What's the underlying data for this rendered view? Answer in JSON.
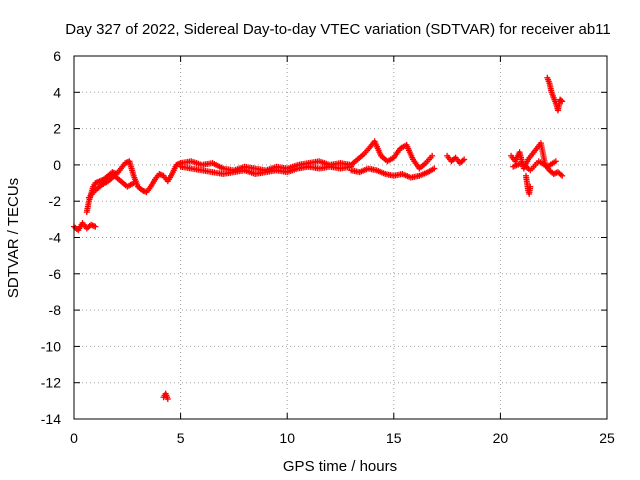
{
  "chart_data": {
    "type": "scatter",
    "title": "Day 327 of 2022, Sidereal Day-to-day VTEC variation (SDTVAR) for receiver ab11",
    "xlabel": "GPS time / hours",
    "ylabel": "SDTVAR / TECUs",
    "xlim": [
      0,
      25
    ],
    "ylim": [
      -14,
      6
    ],
    "xticks": [
      0,
      5,
      10,
      15,
      20,
      25
    ],
    "yticks": [
      -14,
      -12,
      -10,
      -8,
      -6,
      -4,
      -2,
      0,
      2,
      4,
      6
    ],
    "grid": true,
    "marker": "plus",
    "color": "#ff0000",
    "series": [
      {
        "name": "SDTVAR",
        "segments": [
          {
            "x": [
              0.0,
              0.2,
              0.4,
              0.6,
              0.8,
              1.0
            ],
            "y": [
              -3.4,
              -3.6,
              -3.2,
              -3.5,
              -3.3,
              -3.4
            ]
          },
          {
            "x": [
              0.6,
              0.7,
              0.8,
              0.9,
              1.0,
              1.2,
              1.4,
              1.6,
              1.8,
              2.0,
              2.2,
              2.4,
              2.6,
              2.8,
              3.0,
              3.2,
              3.4,
              3.6,
              3.8,
              4.0,
              4.2,
              4.4,
              4.6,
              4.8,
              5.0
            ],
            "y": [
              -2.6,
              -2.0,
              -1.6,
              -1.2,
              -1.0,
              -0.9,
              -0.8,
              -0.6,
              -0.4,
              -0.5,
              -0.2,
              0.1,
              0.2,
              -0.6,
              -1.2,
              -1.4,
              -1.5,
              -1.2,
              -0.8,
              -0.5,
              -0.6,
              -0.9,
              -0.5,
              0.0,
              0.1
            ]
          },
          {
            "x": [
              0.7,
              1.0,
              1.3,
              1.6,
              1.9,
              2.2,
              2.5,
              2.8
            ],
            "y": [
              -1.8,
              -1.4,
              -1.1,
              -0.9,
              -0.6,
              -0.9,
              -1.2,
              -1.0
            ]
          },
          {
            "x": [
              4.2,
              4.3,
              4.4
            ],
            "y": [
              -12.8,
              -12.6,
              -12.9
            ]
          },
          {
            "x": [
              5.0,
              5.5,
              6.0,
              6.5,
              7.0,
              7.5,
              8.0,
              8.5,
              9.0,
              9.5,
              10.0,
              10.5,
              11.0,
              11.5,
              12.0,
              12.5,
              13.0
            ],
            "y": [
              0.1,
              0.2,
              0.0,
              0.1,
              -0.2,
              -0.3,
              -0.1,
              -0.2,
              -0.3,
              -0.1,
              -0.2,
              0.0,
              0.1,
              0.2,
              0.0,
              0.1,
              0.0
            ]
          },
          {
            "x": [
              5.0,
              5.5,
              6.0,
              6.5,
              7.0,
              7.5,
              8.0,
              8.5,
              9.0,
              9.5,
              10.0,
              10.5,
              11.0,
              11.5,
              12.0,
              12.5,
              13.0
            ],
            "y": [
              -0.1,
              -0.2,
              -0.3,
              -0.4,
              -0.5,
              -0.4,
              -0.3,
              -0.5,
              -0.4,
              -0.3,
              -0.4,
              -0.2,
              -0.1,
              -0.2,
              -0.1,
              -0.2,
              -0.1
            ]
          },
          {
            "x": [
              13.0,
              13.3,
              13.6,
              13.9,
              14.1,
              14.4,
              14.7,
              15.0,
              15.3,
              15.6,
              15.9,
              16.2,
              16.5,
              16.8
            ],
            "y": [
              0.0,
              0.3,
              0.6,
              1.0,
              1.3,
              0.5,
              0.2,
              0.4,
              0.9,
              1.1,
              0.3,
              -0.2,
              0.1,
              0.5
            ]
          },
          {
            "x": [
              13.0,
              13.4,
              13.8,
              14.2,
              14.6,
              15.0,
              15.4,
              15.8,
              16.2,
              16.6,
              16.9
            ],
            "y": [
              -0.3,
              -0.4,
              -0.2,
              -0.3,
              -0.5,
              -0.6,
              -0.5,
              -0.7,
              -0.6,
              -0.4,
              -0.2
            ]
          },
          {
            "x": [
              17.5,
              17.7,
              17.9,
              18.1,
              18.3
            ],
            "y": [
              0.5,
              0.2,
              0.4,
              0.1,
              0.3
            ]
          },
          {
            "x": [
              20.5,
              20.7,
              20.9,
              21.1,
              21.3,
              21.5,
              21.7,
              21.9,
              22.1,
              22.3,
              22.5,
              22.7,
              22.9
            ],
            "y": [
              0.5,
              0.2,
              0.7,
              -0.2,
              0.3,
              0.6,
              0.9,
              1.2,
              0.0,
              -0.3,
              -0.5,
              -0.4,
              -0.6
            ]
          },
          {
            "x": [
              21.2,
              21.25,
              21.3,
              21.35,
              21.4
            ],
            "y": [
              -0.6,
              -1.0,
              -1.4,
              -1.6,
              -1.2
            ]
          },
          {
            "x": [
              20.6,
              21.0,
              21.4,
              21.8,
              22.2,
              22.6
            ],
            "y": [
              -0.1,
              0.1,
              -0.3,
              0.2,
              -0.1,
              0.2
            ]
          },
          {
            "x": [
              22.2,
              22.3,
              22.4,
              22.5,
              22.6,
              22.7,
              22.8,
              22.9
            ],
            "y": [
              4.8,
              4.5,
              4.0,
              3.7,
              3.4,
              3.0,
              3.6,
              3.5
            ]
          }
        ]
      }
    ]
  }
}
